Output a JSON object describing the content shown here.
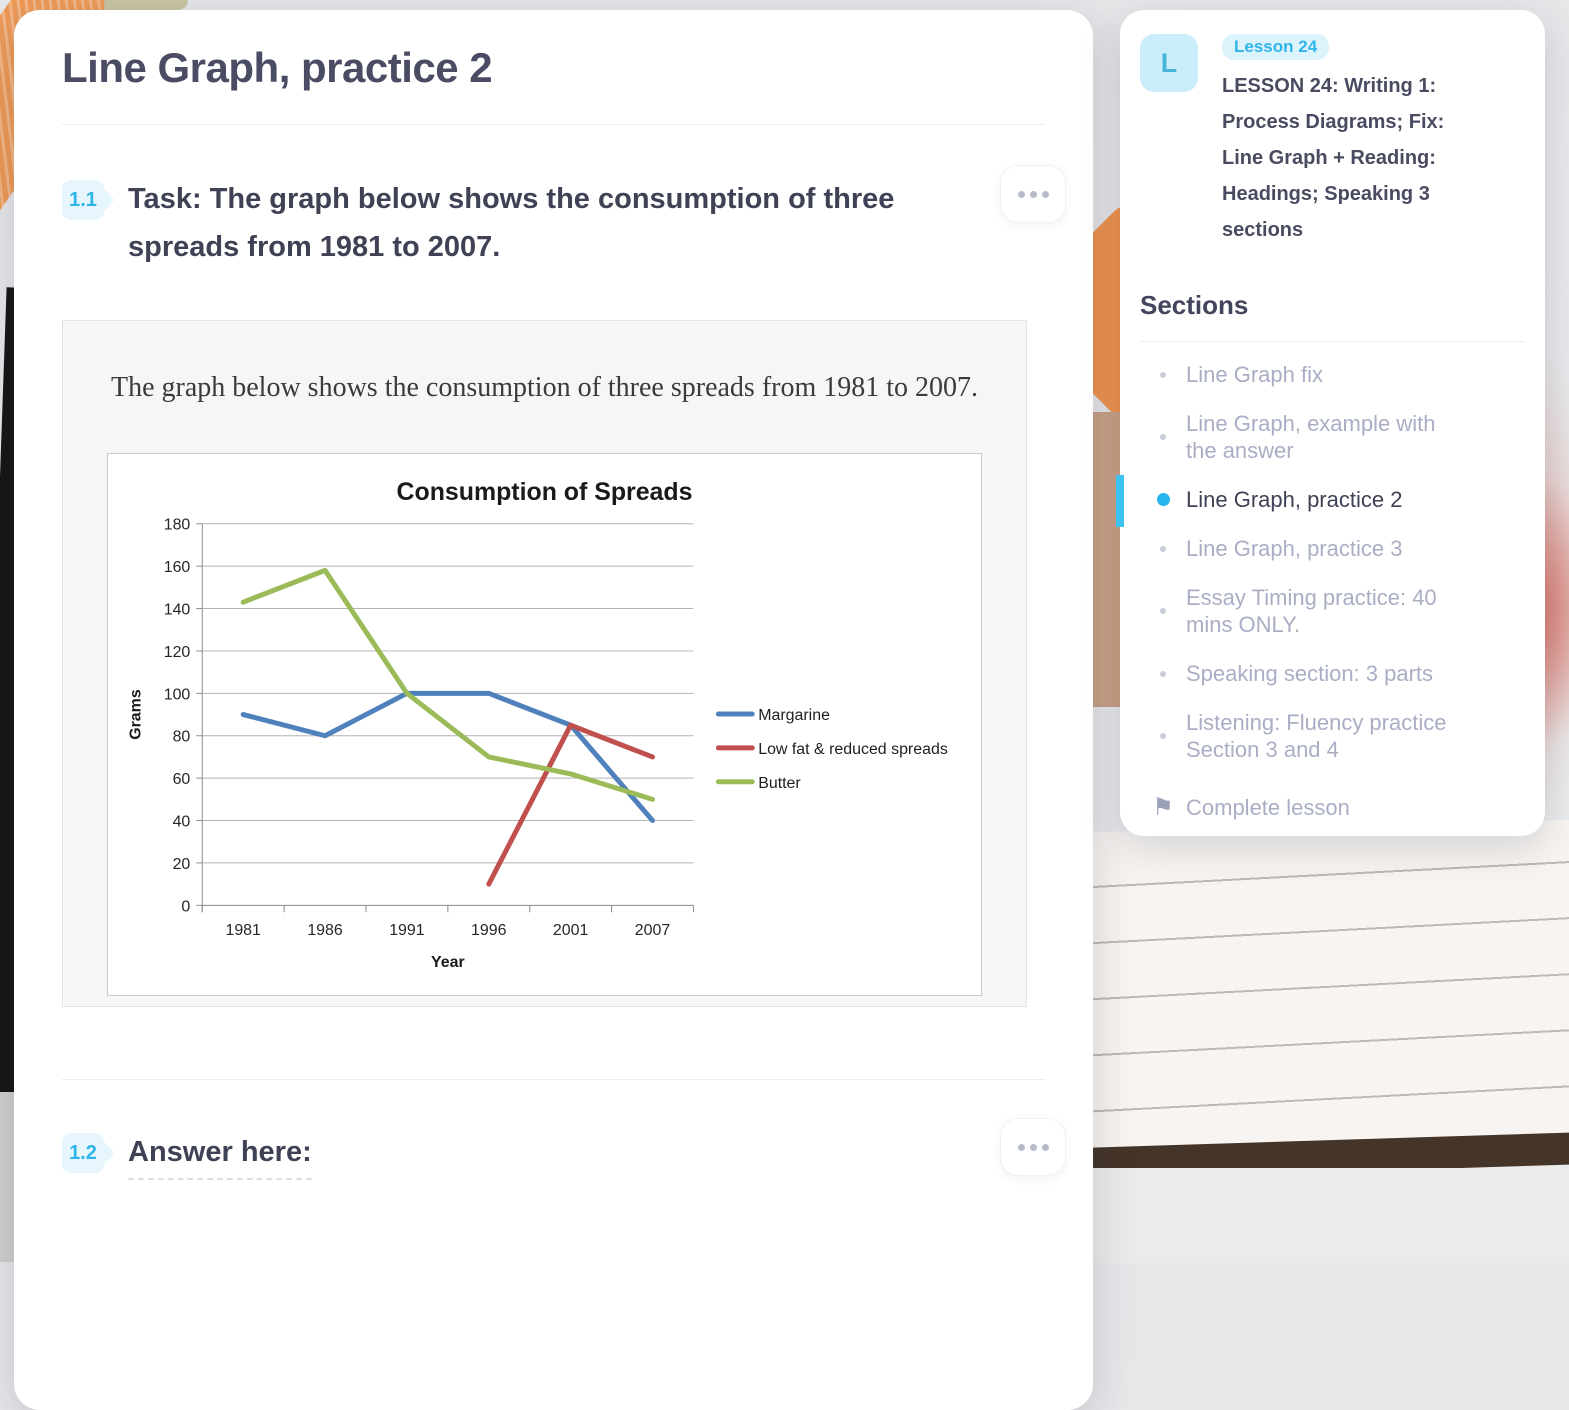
{
  "page": {
    "title": "Line Graph, practice 2"
  },
  "task_1": {
    "number": "1.1",
    "text": "Task: The graph below shows the consumption of three spreads from 1981 to 2007."
  },
  "figure": {
    "caption": "The graph below shows the consumption of three spreads from 1981 to 2007."
  },
  "chart_data": {
    "type": "line",
    "title": "Consumption of Spreads",
    "xlabel": "Year",
    "ylabel": "Grams",
    "categories": [
      "1981",
      "1986",
      "1991",
      "1996",
      "2001",
      "2007"
    ],
    "series": [
      {
        "name": "Margarine",
        "color": "#4f81bd",
        "values": [
          90,
          80,
          100,
          100,
          85,
          40
        ]
      },
      {
        "name": "Low fat & reduced spreads",
        "color": "#c0504d",
        "values": [
          null,
          null,
          null,
          10,
          85,
          70
        ]
      },
      {
        "name": "Butter",
        "color": "#9bbb59",
        "values": [
          143,
          158,
          100,
          70,
          62,
          50
        ]
      }
    ],
    "ylim": [
      0,
      180
    ],
    "ytick_step": 20,
    "grid": true,
    "legend_position": "right"
  },
  "task_2": {
    "number": "1.2",
    "text": "Answer here:"
  },
  "sidebar": {
    "badge_letter": "L",
    "lesson_tag": "Lesson 24",
    "lesson_title": "LESSON 24: Writing 1: Process Diagrams; Fix: Line Graph + Reading: Headings; Speaking 3 sections",
    "sections_heading": "Sections",
    "items": [
      {
        "label": "Line Graph fix",
        "active": false
      },
      {
        "label": "Line Graph, example with the answer",
        "active": false
      },
      {
        "label": "Line Graph, practice 2",
        "active": true
      },
      {
        "label": "Line Graph, practice 3",
        "active": false
      },
      {
        "label": "Essay Timing practice: 40 mins ONLY.",
        "active": false
      },
      {
        "label": "Speaking section: 3 parts",
        "active": false
      },
      {
        "label": "Listening: Fluency practice Section 3 and 4",
        "active": false
      }
    ],
    "complete_label": "Complete lesson"
  },
  "colors": {
    "accent": "#2fb5ea",
    "title_text": "#4a4c63",
    "muted_text": "#a9aec5"
  }
}
